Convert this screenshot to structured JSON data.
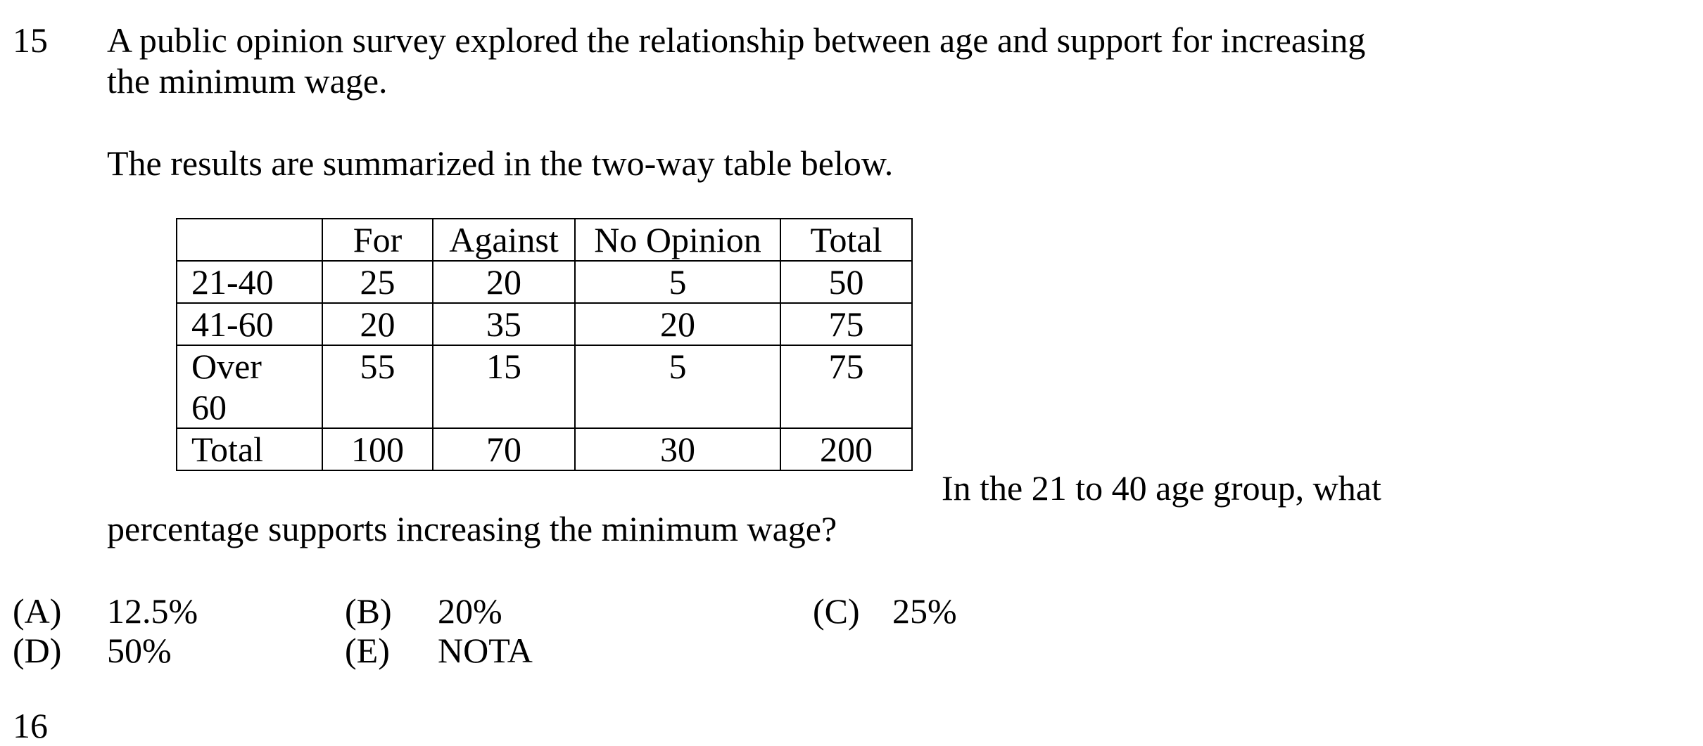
{
  "question": {
    "number": "15",
    "stem_line1": "A public opinion survey explored the relationship between age and support for increasing",
    "stem_line2": "the minimum wage.",
    "intro": "The results are summarized in the two-way table below.",
    "prompt_line1": "In the 21 to 40 age group, what",
    "prompt_line2": "percentage supports increasing the minimum wage?"
  },
  "table": {
    "headers": [
      "",
      "For",
      "Against",
      "No Opinion",
      "Total"
    ],
    "rows": [
      {
        "label": "21-40",
        "cells": [
          "25",
          "20",
          "5",
          "50"
        ]
      },
      {
        "label": "41-60",
        "cells": [
          "20",
          "35",
          "20",
          "75"
        ]
      },
      {
        "label_line1": "Over",
        "label_line2": "60",
        "cells": [
          "55",
          "15",
          "5",
          "75"
        ]
      },
      {
        "label": "Total",
        "cells": [
          "100",
          "70",
          "30",
          "200"
        ]
      }
    ]
  },
  "options": [
    {
      "letter": "(A)",
      "text": "12.5%"
    },
    {
      "letter": "(B)",
      "text": "20%"
    },
    {
      "letter": "(C)",
      "text": "25%"
    },
    {
      "letter": "(D)",
      "text": "50%"
    },
    {
      "letter": "(E)",
      "text": "NOTA"
    }
  ],
  "next_question": {
    "number": "16"
  }
}
